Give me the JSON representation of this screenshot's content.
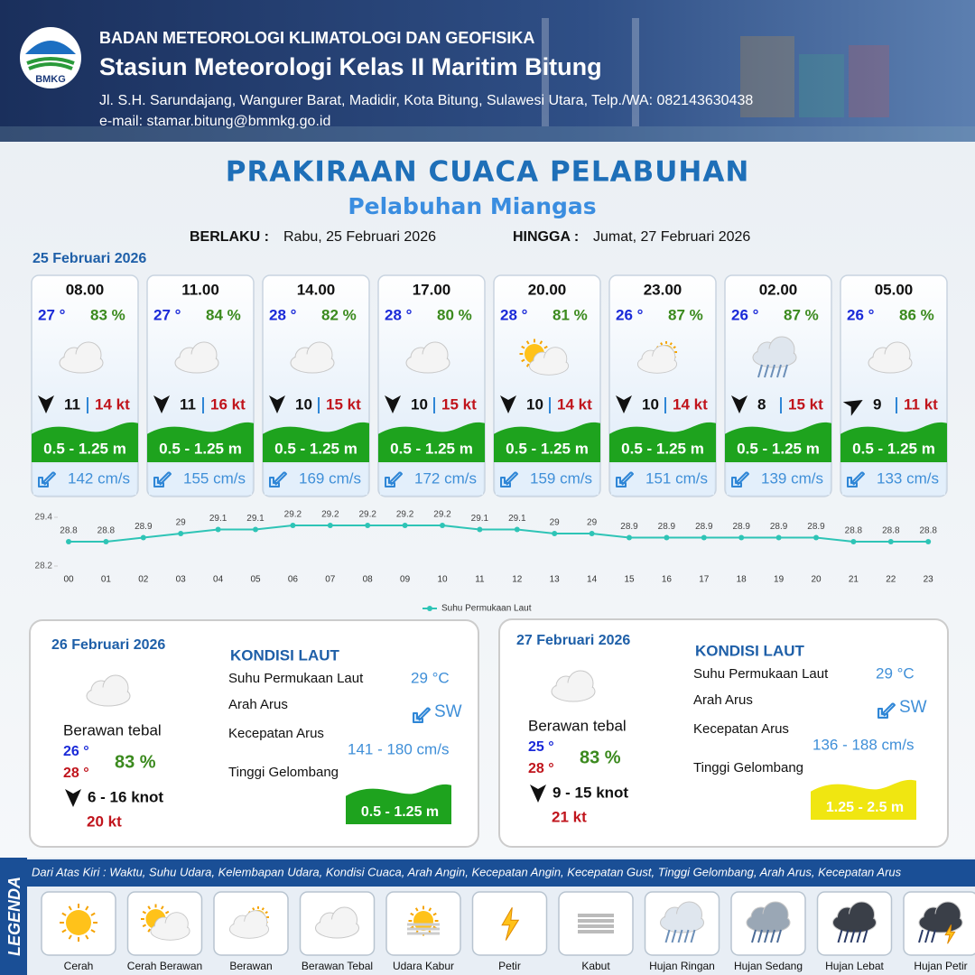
{
  "header": {
    "logo": "BMKG",
    "agency": "BADAN METEOROLOGI KLIMATOLOGI DAN GEOFISIKA",
    "station": "Stasiun Meteorologi Kelas II Maritim Bitung",
    "address": "Jl. S.H. Sarundajang, Wangurer Barat, Madidir, Kota Bitung, Sulawesi Utara, Telp./WA: 082143630438",
    "email": "e-mail: stamar.bitung@bmmkg.go.id"
  },
  "title": "PRAKIRAAN CUACA PELABUHAN",
  "port": "Pelabuhan Miangas",
  "validity": {
    "from_label": "BERLAKU :",
    "from": "Rabu, 25 Februari 2026",
    "until_label": "HINGGA :",
    "until": "Jumat, 27 Februari 2026"
  },
  "day1": {
    "date": "25 Februari 2026",
    "cards": [
      {
        "time": "08.00",
        "temp": "27 °",
        "humidity": "83 %",
        "wind": "11",
        "gust": "14 kt",
        "wave": "0.5 - 1.25 m",
        "current": "142 cm/s"
      },
      {
        "time": "11.00",
        "temp": "27 °",
        "humidity": "84 %",
        "wind": "11",
        "gust": "16 kt",
        "wave": "0.5 - 1.25 m",
        "current": "155 cm/s"
      },
      {
        "time": "14.00",
        "temp": "28 °",
        "humidity": "82 %",
        "wind": "10",
        "gust": "15 kt",
        "wave": "0.5 - 1.25 m",
        "current": "169 cm/s"
      },
      {
        "time": "17.00",
        "temp": "28 °",
        "humidity": "80 %",
        "wind": "10",
        "gust": "15 kt",
        "wave": "0.5 - 1.25 m",
        "current": "172 cm/s"
      },
      {
        "time": "20.00",
        "temp": "28 °",
        "humidity": "81 %",
        "wind": "10",
        "gust": "14 kt",
        "wave": "0.5 - 1.25 m",
        "current": "159 cm/s"
      },
      {
        "time": "23.00",
        "temp": "26 °",
        "humidity": "87 %",
        "wind": "10",
        "gust": "14 kt",
        "wave": "0.5 - 1.25 m",
        "current": "151 cm/s"
      },
      {
        "time": "02.00",
        "temp": "26 °",
        "humidity": "87 %",
        "wind": "8",
        "gust": "15 kt",
        "wave": "0.5 - 1.25 m",
        "current": "139 cm/s"
      },
      {
        "time": "05.00",
        "temp": "26 °",
        "humidity": "86 %",
        "wind": "9",
        "gust": "11 kt",
        "wave": "0.5 - 1.25 m",
        "current": "133 cm/s"
      }
    ]
  },
  "chart_data": {
    "type": "line",
    "categories": [
      "00",
      "01",
      "02",
      "03",
      "04",
      "05",
      "06",
      "07",
      "08",
      "09",
      "10",
      "11",
      "12",
      "13",
      "14",
      "15",
      "16",
      "17",
      "18",
      "19",
      "20",
      "21",
      "22",
      "23"
    ],
    "series": [
      {
        "name": "Suhu Permukaan Laut",
        "color": "#2ec4b6",
        "values": [
          28.8,
          28.8,
          28.9,
          29.0,
          29.1,
          29.1,
          29.2,
          29.2,
          29.2,
          29.2,
          29.2,
          29.1,
          29.1,
          29.0,
          29.0,
          28.9,
          28.9,
          28.9,
          28.9,
          28.9,
          28.9,
          28.8,
          28.8,
          28.8
        ]
      }
    ],
    "ylim": [
      28.2,
      29.4
    ],
    "yticks": [
      28.2,
      29.4
    ]
  },
  "day2": {
    "date": "26 Februari 2026",
    "condition": "Berawan tebal",
    "temp_min": "26 °",
    "temp_max": "28 °",
    "humidity": "83 %",
    "wind": "6  - 16 knot",
    "gust": "20 kt",
    "sea": {
      "heading": "KONDISI LAUT",
      "sst_label": "Suhu Permukaan Laut",
      "sst": "29 °C",
      "dir_label": "Arah Arus",
      "dir": "SW",
      "speed_label": "Kecepatan Arus",
      "speed": "141 - 180 cm/s",
      "wave_label": "Tinggi Gelombang",
      "wave": "0.5 - 1.25 m"
    }
  },
  "day3": {
    "date": "27 Februari 2026",
    "condition": "Berawan tebal",
    "temp_min": "25 °",
    "temp_max": "28 °",
    "humidity": "83 %",
    "wind": "9  - 15 knot",
    "gust": "21 kt",
    "sea": {
      "heading": "KONDISI LAUT",
      "sst_label": "Suhu Permukaan Laut",
      "sst": "29 °C",
      "dir_label": "Arah Arus",
      "dir": "SW",
      "speed_label": "Kecepatan Arus",
      "speed": "136 - 188 cm/s",
      "wave_label": "Tinggi Gelombang",
      "wave": "1.25 - 2.5 m"
    }
  },
  "legend": {
    "title": "LEGENDA",
    "note": "Dari Atas Kiri : Waktu, Suhu Udara, Kelembapan Udara, Kondisi Cuaca, Arah Angin, Kecepatan Angin, Kecepatan Gust, Tinggi Gelombang, Arah Arus, Kecepatan Arus",
    "items": [
      "Cerah",
      "Cerah Berawan",
      "Berawan",
      "Berawan Tebal",
      "Udara Kabur",
      "Petir",
      "Kabut",
      "Hujan Ringan",
      "Hujan Sedang",
      "Hujan Lebat",
      "Hujan Petir"
    ]
  }
}
